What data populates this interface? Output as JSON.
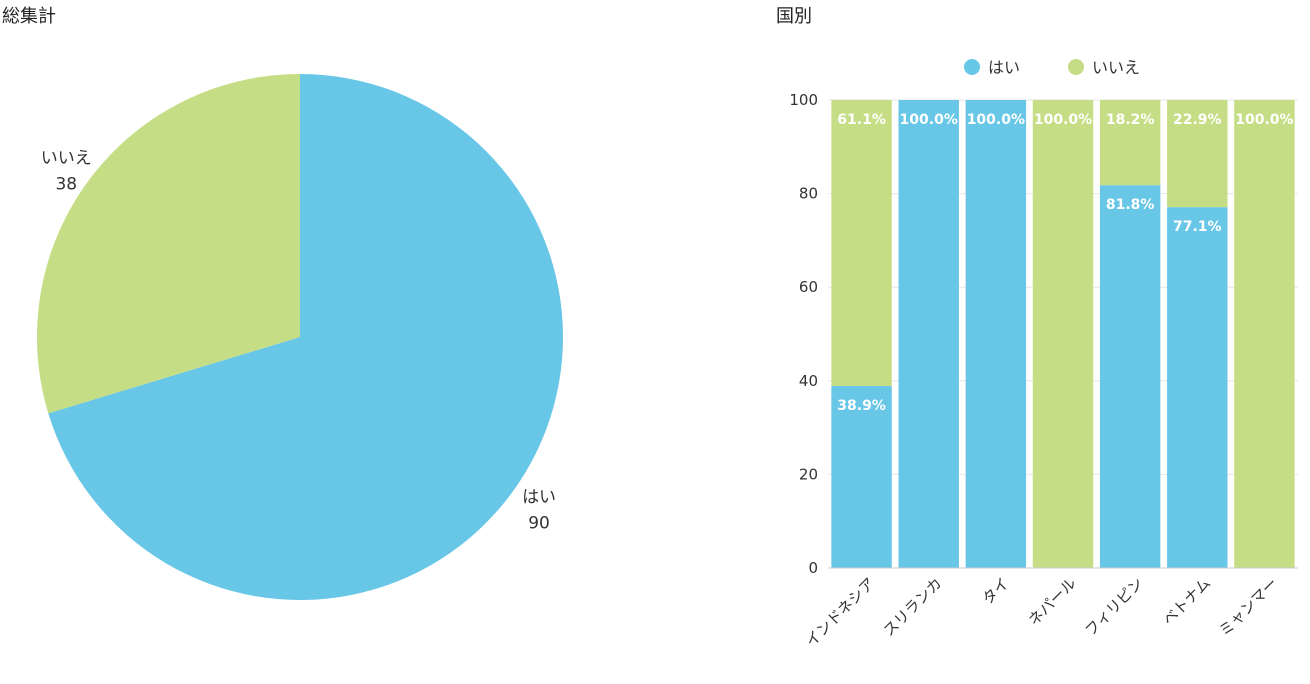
{
  "chart_data": [
    {
      "type": "pie",
      "title": "総集計",
      "slices": [
        {
          "label": "はい",
          "value": 90,
          "color": "#68c6e6"
        },
        {
          "label": "いいえ",
          "value": 38,
          "color": "#c5dd84"
        }
      ]
    },
    {
      "type": "bar",
      "stacked": true,
      "title": "国別",
      "categories": [
        "インドネシア",
        "スリランカ",
        "タイ",
        "ネパール",
        "フィリピン",
        "ベトナム",
        "ミャンマー"
      ],
      "series": [
        {
          "name": "はい",
          "color": "#68c6e6",
          "values": [
            38.9,
            100,
            100,
            0,
            81.8,
            77.1,
            0
          ]
        },
        {
          "name": "いいえ",
          "color": "#c5dd84",
          "values": [
            61.1,
            0,
            0,
            100,
            18.2,
            22.9,
            100
          ]
        }
      ],
      "ylim": [
        0,
        100
      ],
      "yticks": [
        0,
        20,
        40,
        60,
        80,
        100
      ],
      "grid": true,
      "legend": "top"
    }
  ]
}
